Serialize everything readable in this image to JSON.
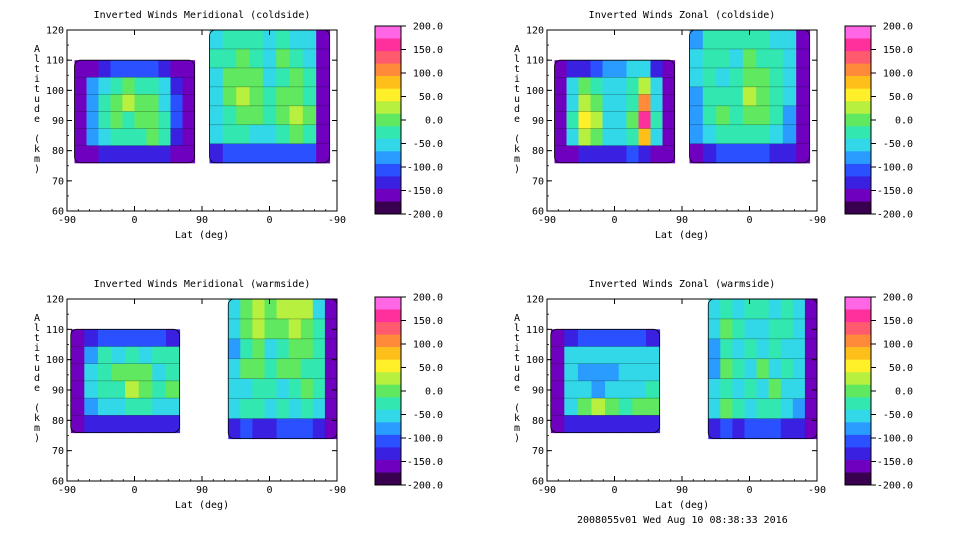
{
  "footer": "2008055v01 Wed Aug 10 08:38:33 2016",
  "colorbar": {
    "ticks": [
      "200.0",
      "150.0",
      "100.0",
      "50.0",
      "0.0",
      "-50.0",
      "-100.0",
      "-150.0",
      "-200.0"
    ],
    "values": [
      200,
      150,
      100,
      50,
      0,
      -50,
      -100,
      -150,
      -200
    ],
    "colors": [
      "#ff66e6",
      "#ff2f9c",
      "#ff5a6e",
      "#ff8a3a",
      "#ffbf1a",
      "#fff02a",
      "#b8f040",
      "#5fe860",
      "#33e8b0",
      "#33d8e8",
      "#2a9cff",
      "#2a50ff",
      "#3a20e0",
      "#7000c0",
      "#3a0050"
    ]
  },
  "chart_data": [
    {
      "type": "heatmap",
      "title": "Inverted Winds Meridional (coldside)",
      "xlabel": "Lat (deg)",
      "ylabel": "Altitude (km)",
      "xticks": [
        "-90",
        "0",
        "90",
        "0",
        "-90"
      ],
      "yticks": [
        "120",
        "110",
        "100",
        "90",
        "80",
        "70",
        "60"
      ],
      "ylim": [
        60,
        120
      ],
      "zlim": [
        -200,
        200
      ],
      "regions": [
        {
          "x": [
            -80,
            80
          ],
          "y": [
            76,
            110
          ],
          "levels": [
            [
              -170,
              -150,
              -120,
              -100,
              -100,
              -100,
              -100,
              -120,
              -150,
              -170
            ],
            [
              -170,
              -90,
              -40,
              -20,
              -10,
              -20,
              -30,
              -60,
              -120,
              -170
            ],
            [
              -170,
              -80,
              -30,
              0,
              20,
              10,
              -10,
              -40,
              -110,
              -170
            ],
            [
              -170,
              -90,
              -20,
              -10,
              -30,
              10,
              0,
              -30,
              -110,
              -170
            ],
            [
              -170,
              -90,
              -40,
              -20,
              -30,
              -20,
              -10,
              -30,
              -120,
              -170
            ],
            [
              -170,
              -150,
              -130,
              -120,
              -120,
              -120,
              -120,
              -130,
              -150,
              -170
            ]
          ]
        },
        {
          "x": [
            100,
            260
          ],
          "y": [
            76,
            120
          ],
          "levels": [
            [
              -40,
              -30,
              -20,
              -30,
              -40,
              -30,
              -40,
              -60,
              -150
            ],
            [
              -30,
              -20,
              -10,
              -20,
              -40,
              0,
              -30,
              -40,
              -150
            ],
            [
              -40,
              -10,
              10,
              -10,
              -40,
              -20,
              0,
              -30,
              -150
            ],
            [
              -50,
              -10,
              20,
              0,
              -20,
              10,
              10,
              -20,
              -150
            ],
            [
              -50,
              -20,
              0,
              -10,
              -30,
              0,
              20,
              -10,
              -150
            ],
            [
              -60,
              -30,
              -20,
              -40,
              -40,
              -20,
              0,
              -20,
              -150
            ],
            [
              -120,
              -110,
              -100,
              -110,
              -110,
              -100,
              -100,
              -110,
              -160
            ]
          ]
        }
      ]
    },
    {
      "type": "heatmap",
      "title": "Inverted Winds Zonal (coldside)",
      "xlabel": "Lat (deg)",
      "ylabel": "Altitude (km)",
      "xticks": [
        "-90",
        "0",
        "90",
        "0",
        "-90"
      ],
      "yticks": [
        "120",
        "110",
        "100",
        "90",
        "80",
        "70",
        "60"
      ],
      "ylim": [
        60,
        120
      ],
      "zlim": [
        -200,
        200
      ],
      "regions": [
        {
          "x": [
            -80,
            80
          ],
          "y": [
            76,
            110
          ],
          "levels": [
            [
              -170,
              -140,
              -120,
              -100,
              -90,
              -80,
              -60,
              -40,
              -120,
              -170
            ],
            [
              -170,
              -60,
              10,
              -20,
              -40,
              -50,
              -30,
              40,
              -60,
              -170
            ],
            [
              -170,
              -40,
              40,
              10,
              -50,
              -60,
              -20,
              120,
              -40,
              -170
            ],
            [
              -170,
              -30,
              60,
              20,
              -50,
              -60,
              -10,
              150,
              -30,
              -170
            ],
            [
              -170,
              -60,
              30,
              0,
              -50,
              -50,
              -30,
              90,
              -60,
              -170
            ],
            [
              -170,
              -150,
              -130,
              -120,
              -120,
              -120,
              -110,
              -120,
              -150,
              -170
            ]
          ]
        },
        {
          "x": [
            100,
            260
          ],
          "y": [
            76,
            120
          ],
          "levels": [
            [
              -90,
              -30,
              -20,
              -30,
              -20,
              -20,
              -40,
              -60,
              -150
            ],
            [
              -60,
              -20,
              -30,
              -40,
              -10,
              -20,
              -30,
              -60,
              -150
            ],
            [
              -60,
              -30,
              -40,
              -30,
              10,
              0,
              -20,
              -60,
              -150
            ],
            [
              -70,
              -20,
              -30,
              -20,
              20,
              10,
              -20,
              -60,
              -150
            ],
            [
              -70,
              -30,
              -10,
              -20,
              0,
              -10,
              -30,
              -70,
              -150
            ],
            [
              -90,
              -40,
              -30,
              -20,
              -20,
              -30,
              -40,
              -80,
              -150
            ],
            [
              -150,
              -120,
              -110,
              -110,
              -110,
              -110,
              -120,
              -130,
              -170
            ]
          ]
        }
      ]
    },
    {
      "type": "heatmap",
      "title": "Inverted Winds Meridional (warmside)",
      "xlabel": "Lat (deg)",
      "ylabel": "Altitude (km)",
      "xticks": [
        "-90",
        "0",
        "90",
        "0",
        "-90"
      ],
      "yticks": [
        "120",
        "110",
        "100",
        "90",
        "80",
        "70",
        "60"
      ],
      "ylim": [
        60,
        120
      ],
      "zlim": [
        -200,
        200
      ],
      "regions": [
        {
          "x": [
            -85,
            60
          ],
          "y": [
            76,
            110
          ],
          "levels": [
            [
              -170,
              -120,
              -110,
              -110,
              -110,
              -110,
              -110,
              -120
            ],
            [
              -170,
              -70,
              -30,
              -40,
              -20,
              -40,
              -30,
              -20
            ],
            [
              -170,
              -60,
              -20,
              -10,
              10,
              -10,
              -40,
              -20
            ],
            [
              -170,
              -50,
              -30,
              -20,
              20,
              0,
              -20,
              -10
            ],
            [
              -170,
              -70,
              -40,
              -50,
              -30,
              -30,
              -50,
              -40
            ],
            [
              -170,
              -130,
              -120,
              -120,
              -120,
              -120,
              -130,
              -140
            ]
          ]
        },
        {
          "x": [
            125,
            270
          ],
          "y": [
            74,
            120
          ],
          "levels": [
            [
              -40,
              10,
              20,
              -10,
              20,
              40,
              30,
              -40,
              -170
            ],
            [
              -40,
              -10,
              30,
              0,
              10,
              30,
              10,
              -30,
              -170
            ],
            [
              -80,
              -30,
              -10,
              -40,
              -20,
              0,
              -10,
              -30,
              -170
            ],
            [
              -60,
              -10,
              0,
              -30,
              -10,
              10,
              -20,
              -20,
              -170
            ],
            [
              -50,
              -40,
              -20,
              -30,
              -40,
              -20,
              -10,
              -30,
              -170
            ],
            [
              -40,
              -20,
              -30,
              -40,
              -20,
              -40,
              -20,
              -40,
              -170
            ],
            [
              -130,
              -110,
              -120,
              -120,
              -110,
              -110,
              -110,
              -120,
              -170
            ]
          ]
        }
      ]
    },
    {
      "type": "heatmap",
      "title": "Inverted Winds Zonal (warmside)",
      "xlabel": "Lat (deg)",
      "ylabel": "Altitude (km)",
      "xticks": [
        "-90",
        "0",
        "90",
        "0",
        "-90"
      ],
      "yticks": [
        "120",
        "110",
        "100",
        "90",
        "80",
        "70",
        "60"
      ],
      "ylim": [
        60,
        120
      ],
      "zlim": [
        -200,
        200
      ],
      "regions": [
        {
          "x": [
            -85,
            60
          ],
          "y": [
            76,
            110
          ],
          "levels": [
            [
              -170,
              -120,
              -110,
              -110,
              -110,
              -110,
              -110,
              -120
            ],
            [
              -170,
              -60,
              -40,
              -50,
              -40,
              -40,
              -40,
              -50
            ],
            [
              -170,
              -60,
              -80,
              -90,
              -90,
              -60,
              -50,
              -40
            ],
            [
              -170,
              -50,
              -60,
              -70,
              -50,
              -40,
              -40,
              -30
            ],
            [
              -170,
              -40,
              10,
              20,
              0,
              -20,
              10,
              0
            ],
            [
              -170,
              -130,
              -120,
              -120,
              -120,
              -120,
              -130,
              -140
            ]
          ]
        },
        {
          "x": [
            125,
            270
          ],
          "y": [
            74,
            120
          ],
          "levels": [
            [
              -60,
              -20,
              -40,
              -30,
              -20,
              -50,
              -30,
              -60,
              -170
            ],
            [
              -60,
              -10,
              -30,
              -50,
              -40,
              -30,
              -20,
              -50,
              -170
            ],
            [
              -80,
              -20,
              -50,
              -30,
              -40,
              -20,
              -40,
              -60,
              -170
            ],
            [
              -70,
              -10,
              -30,
              -40,
              -10,
              -40,
              -20,
              -50,
              -170
            ],
            [
              -60,
              -20,
              -50,
              -30,
              -40,
              -10,
              -50,
              -60,
              -170
            ],
            [
              -60,
              -10,
              -30,
              -40,
              -20,
              -30,
              -40,
              -70,
              -170
            ],
            [
              -130,
              -110,
              -120,
              -110,
              -110,
              -110,
              -120,
              -130,
              -170
            ]
          ]
        }
      ]
    }
  ]
}
